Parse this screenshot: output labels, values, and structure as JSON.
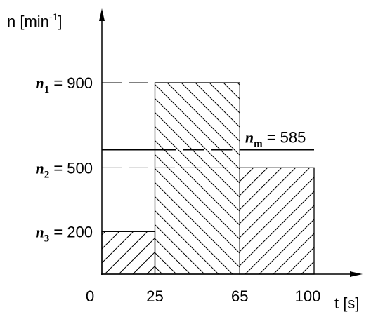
{
  "chart_data": {
    "type": "bar",
    "subtype": "step-histogram",
    "ylabel": {
      "base": "n [min",
      "sup": "-1",
      "close": "]"
    },
    "xlabel": "t [s]",
    "xlim": [
      0,
      100
    ],
    "ylim": [
      0,
      1000
    ],
    "x_ticks": [
      "0",
      "25",
      "65",
      "100"
    ],
    "x_tick_values": [
      0,
      25,
      65,
      100
    ],
    "grid": false,
    "segments": [
      {
        "x0": 0,
        "x1": 25,
        "y": 200,
        "hatch": "forward"
      },
      {
        "x0": 25,
        "x1": 65,
        "y": 900,
        "hatch": "backward"
      },
      {
        "x0": 65,
        "x1": 100,
        "y": 500,
        "hatch": "forward"
      }
    ],
    "levels": [
      {
        "sym": "n",
        "sub": "1",
        "rest": " = 900",
        "y": 900
      },
      {
        "sym": "n",
        "sub": "2",
        "rest": " = 500",
        "y": 500
      },
      {
        "sym": "n",
        "sub": "3",
        "rest": " = 200",
        "y": 200
      }
    ],
    "mean": {
      "sym": "n",
      "sub": "m",
      "rest": " = 585",
      "y": 585,
      "label_x": 67.5
    }
  }
}
